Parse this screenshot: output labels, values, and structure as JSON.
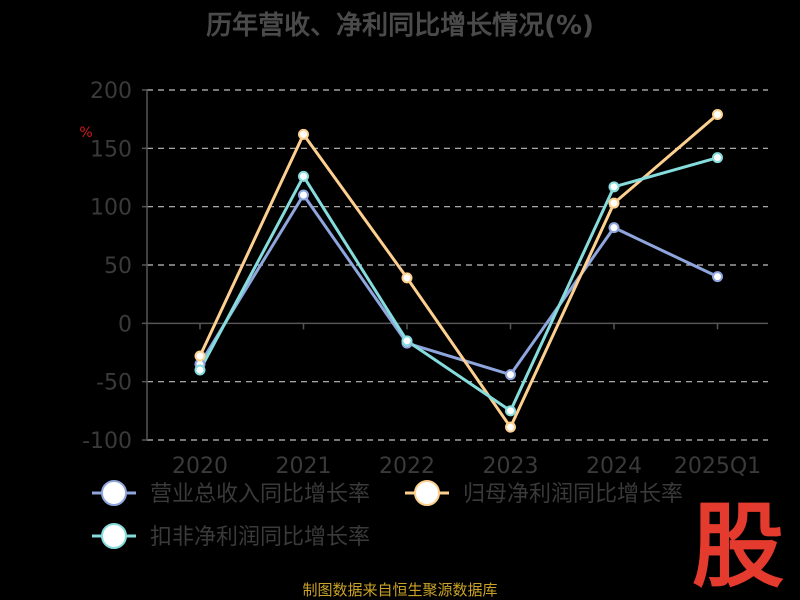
{
  "chart_data": {
    "type": "line",
    "title": "历年营收、净利同比增长情况(%)",
    "ylabel": "%",
    "categories": [
      "2020",
      "2021",
      "2022",
      "2023",
      "2024",
      "2025Q1"
    ],
    "ylim": [
      -100,
      200
    ],
    "yticks": [
      -100,
      -50,
      0,
      50,
      100,
      150,
      200
    ],
    "grid": true,
    "legend_position": "bottom",
    "series": [
      {
        "name": "营业总收入同比增长率",
        "color": "#8ea6dd",
        "values": [
          -35,
          110,
          -17,
          -44,
          82,
          40
        ]
      },
      {
        "name": "归母净利润同比增长率",
        "color": "#fdd08f",
        "values": [
          -28,
          162,
          39,
          -89,
          103,
          179
        ]
      },
      {
        "name": "扣非净利润同比增长率",
        "color": "#86dcdc",
        "values": [
          -40,
          126,
          -15,
          -75,
          117,
          142
        ]
      }
    ]
  },
  "footer": {
    "source": "制图数据来自恒生聚源数据库"
  },
  "logo": {
    "text": "股"
  }
}
